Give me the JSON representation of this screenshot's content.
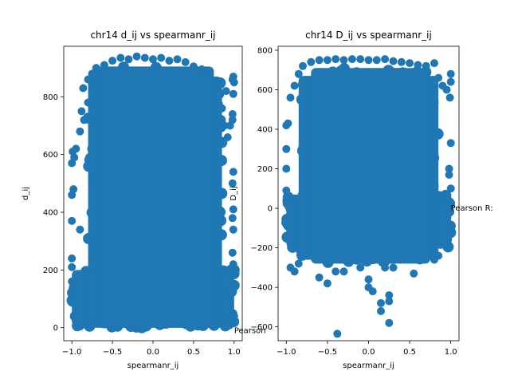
{
  "chart_data": [
    {
      "type": "scatter",
      "title": "chr14 d_ij vs spearmanr_ij",
      "xlabel": "spearmanr_ij",
      "ylabel": "d_ij",
      "xlim": [
        -1.1,
        1.1
      ],
      "ylim": [
        -45,
        975
      ],
      "xticks": [
        -1.0,
        -0.5,
        0.0,
        0.5,
        1.0
      ],
      "xtick_labels": [
        "−1.0",
        "−0.5",
        "0.0",
        "0.5",
        "1.0"
      ],
      "yticks": [
        0,
        200,
        400,
        600,
        800
      ],
      "ytick_labels": [
        "0",
        "200",
        "400",
        "600",
        "800"
      ],
      "annotation": "Pearson",
      "annotation_position": [
        1.0,
        -10
      ],
      "marker_color": "#1f77b4",
      "points": [
        [
          -1.0,
          570
        ],
        [
          -1.0,
          460
        ],
        [
          -0.99,
          610
        ],
        [
          -1.0,
          370
        ],
        [
          -0.98,
          480
        ],
        [
          -0.9,
          680
        ],
        [
          -0.88,
          750
        ],
        [
          -0.86,
          830
        ],
        [
          -0.85,
          720
        ],
        [
          -0.9,
          340
        ],
        [
          -0.8,
          860
        ],
        [
          -0.8,
          780
        ],
        [
          -0.75,
          880
        ],
        [
          -0.7,
          900
        ],
        [
          -0.6,
          910
        ],
        [
          -0.5,
          925
        ],
        [
          -0.4,
          935
        ],
        [
          -0.3,
          930
        ],
        [
          -0.2,
          940
        ],
        [
          -0.1,
          935
        ],
        [
          0.0,
          930
        ],
        [
          0.1,
          935
        ],
        [
          0.2,
          925
        ],
        [
          0.3,
          930
        ],
        [
          0.4,
          920
        ],
        [
          0.5,
          905
        ],
        [
          0.6,
          895
        ],
        [
          0.7,
          880
        ],
        [
          0.8,
          850
        ],
        [
          0.85,
          760
        ],
        [
          0.9,
          820
        ],
        [
          0.88,
          700
        ],
        [
          0.92,
          660
        ],
        [
          0.95,
          700
        ],
        [
          0.98,
          860
        ],
        [
          0.99,
          870
        ],
        [
          1.0,
          850
        ],
        [
          0.99,
          810
        ],
        [
          0.98,
          740
        ],
        [
          0.98,
          720
        ],
        [
          0.99,
          540
        ],
        [
          0.98,
          500
        ],
        [
          0.99,
          410
        ],
        [
          0.98,
          380
        ],
        [
          0.99,
          340
        ],
        [
          0.98,
          260
        ],
        [
          0.99,
          220
        ],
        [
          0.98,
          130
        ],
        [
          0.99,
          50
        ],
        [
          1.0,
          40
        ],
        [
          -1.0,
          240
        ],
        [
          -1.0,
          210
        ],
        [
          -1.0,
          160
        ],
        [
          -0.97,
          590
        ],
        [
          -0.95,
          620
        ]
      ],
      "dense_regions": [
        {
          "x0": -1.0,
          "x1": 1.0,
          "y0": 5,
          "y1": 200
        },
        {
          "x0": -0.8,
          "x1": 0.85,
          "y0": 0,
          "y1": 870
        },
        {
          "x0": -0.7,
          "x1": 0.75,
          "y0": 0,
          "y1": 905
        }
      ]
    },
    {
      "type": "scatter",
      "title": "chr14 D_ij vs spearmanr_ij",
      "xlabel": "spearmanr_ij",
      "ylabel": "D_ij",
      "xlim": [
        -1.1,
        1.1
      ],
      "ylim": [
        -670,
        820
      ],
      "xticks": [
        -1.0,
        -0.5,
        0.0,
        0.5,
        1.0
      ],
      "xtick_labels": [
        "−1.0",
        "−0.5",
        "0.0",
        "0.5",
        "1.0"
      ],
      "yticks": [
        -600,
        -400,
        -200,
        0,
        200,
        400,
        600,
        800
      ],
      "ytick_labels": [
        "−600",
        "−400",
        "−200",
        "0",
        "200",
        "400",
        "600",
        "800"
      ],
      "annotation": "Pearson R:",
      "annotation_position": [
        1.0,
        0
      ],
      "marker_color": "#1f77b4",
      "points": [
        [
          -1.0,
          420
        ],
        [
          -1.0,
          300
        ],
        [
          -1.0,
          200
        ],
        [
          -0.98,
          430
        ],
        [
          -0.95,
          560
        ],
        [
          -0.9,
          620
        ],
        [
          -0.85,
          680
        ],
        [
          -0.8,
          720
        ],
        [
          -0.7,
          740
        ],
        [
          -0.6,
          750
        ],
        [
          -0.5,
          750
        ],
        [
          -0.4,
          755
        ],
        [
          -0.3,
          750
        ],
        [
          -0.2,
          755
        ],
        [
          -0.1,
          755
        ],
        [
          0.0,
          750
        ],
        [
          0.1,
          750
        ],
        [
          0.2,
          755
        ],
        [
          0.3,
          745
        ],
        [
          0.4,
          740
        ],
        [
          0.5,
          735
        ],
        [
          0.6,
          725
        ],
        [
          0.7,
          720
        ],
        [
          0.8,
          735
        ],
        [
          0.85,
          660
        ],
        [
          0.9,
          620
        ],
        [
          0.95,
          600
        ],
        [
          1.0,
          680
        ],
        [
          1.0,
          640
        ],
        [
          0.99,
          560
        ],
        [
          1.0,
          330
        ],
        [
          0.98,
          200
        ],
        [
          0.98,
          170
        ],
        [
          1.0,
          100
        ],
        [
          -1.0,
          90
        ],
        [
          -1.0,
          40
        ],
        [
          -0.95,
          -300
        ],
        [
          -0.9,
          -320
        ],
        [
          -0.85,
          -280
        ],
        [
          -0.6,
          -350
        ],
        [
          -0.5,
          -380
        ],
        [
          -0.4,
          -320
        ],
        [
          -0.3,
          -320
        ],
        [
          -0.1,
          -300
        ],
        [
          0.0,
          -360
        ],
        [
          0.0,
          -400
        ],
        [
          0.05,
          -420
        ],
        [
          0.2,
          -300
        ],
        [
          0.25,
          -440
        ],
        [
          0.25,
          -470
        ],
        [
          0.15,
          -480
        ],
        [
          0.15,
          -520
        ],
        [
          0.25,
          -580
        ],
        [
          -0.38,
          -635
        ],
        [
          0.55,
          -330
        ],
        [
          0.3,
          -300
        ],
        [
          0.8,
          -260
        ],
        [
          0.85,
          -240
        ],
        [
          0.95,
          -180
        ],
        [
          1.0,
          -100
        ]
      ],
      "dense_regions": [
        {
          "x0": -1.0,
          "x1": 1.0,
          "y0": -200,
          "y1": 70
        },
        {
          "x0": -0.85,
          "x1": 0.85,
          "y0": -260,
          "y1": 670
        },
        {
          "x0": -0.7,
          "x1": 0.75,
          "y0": -280,
          "y1": 710
        }
      ]
    }
  ]
}
